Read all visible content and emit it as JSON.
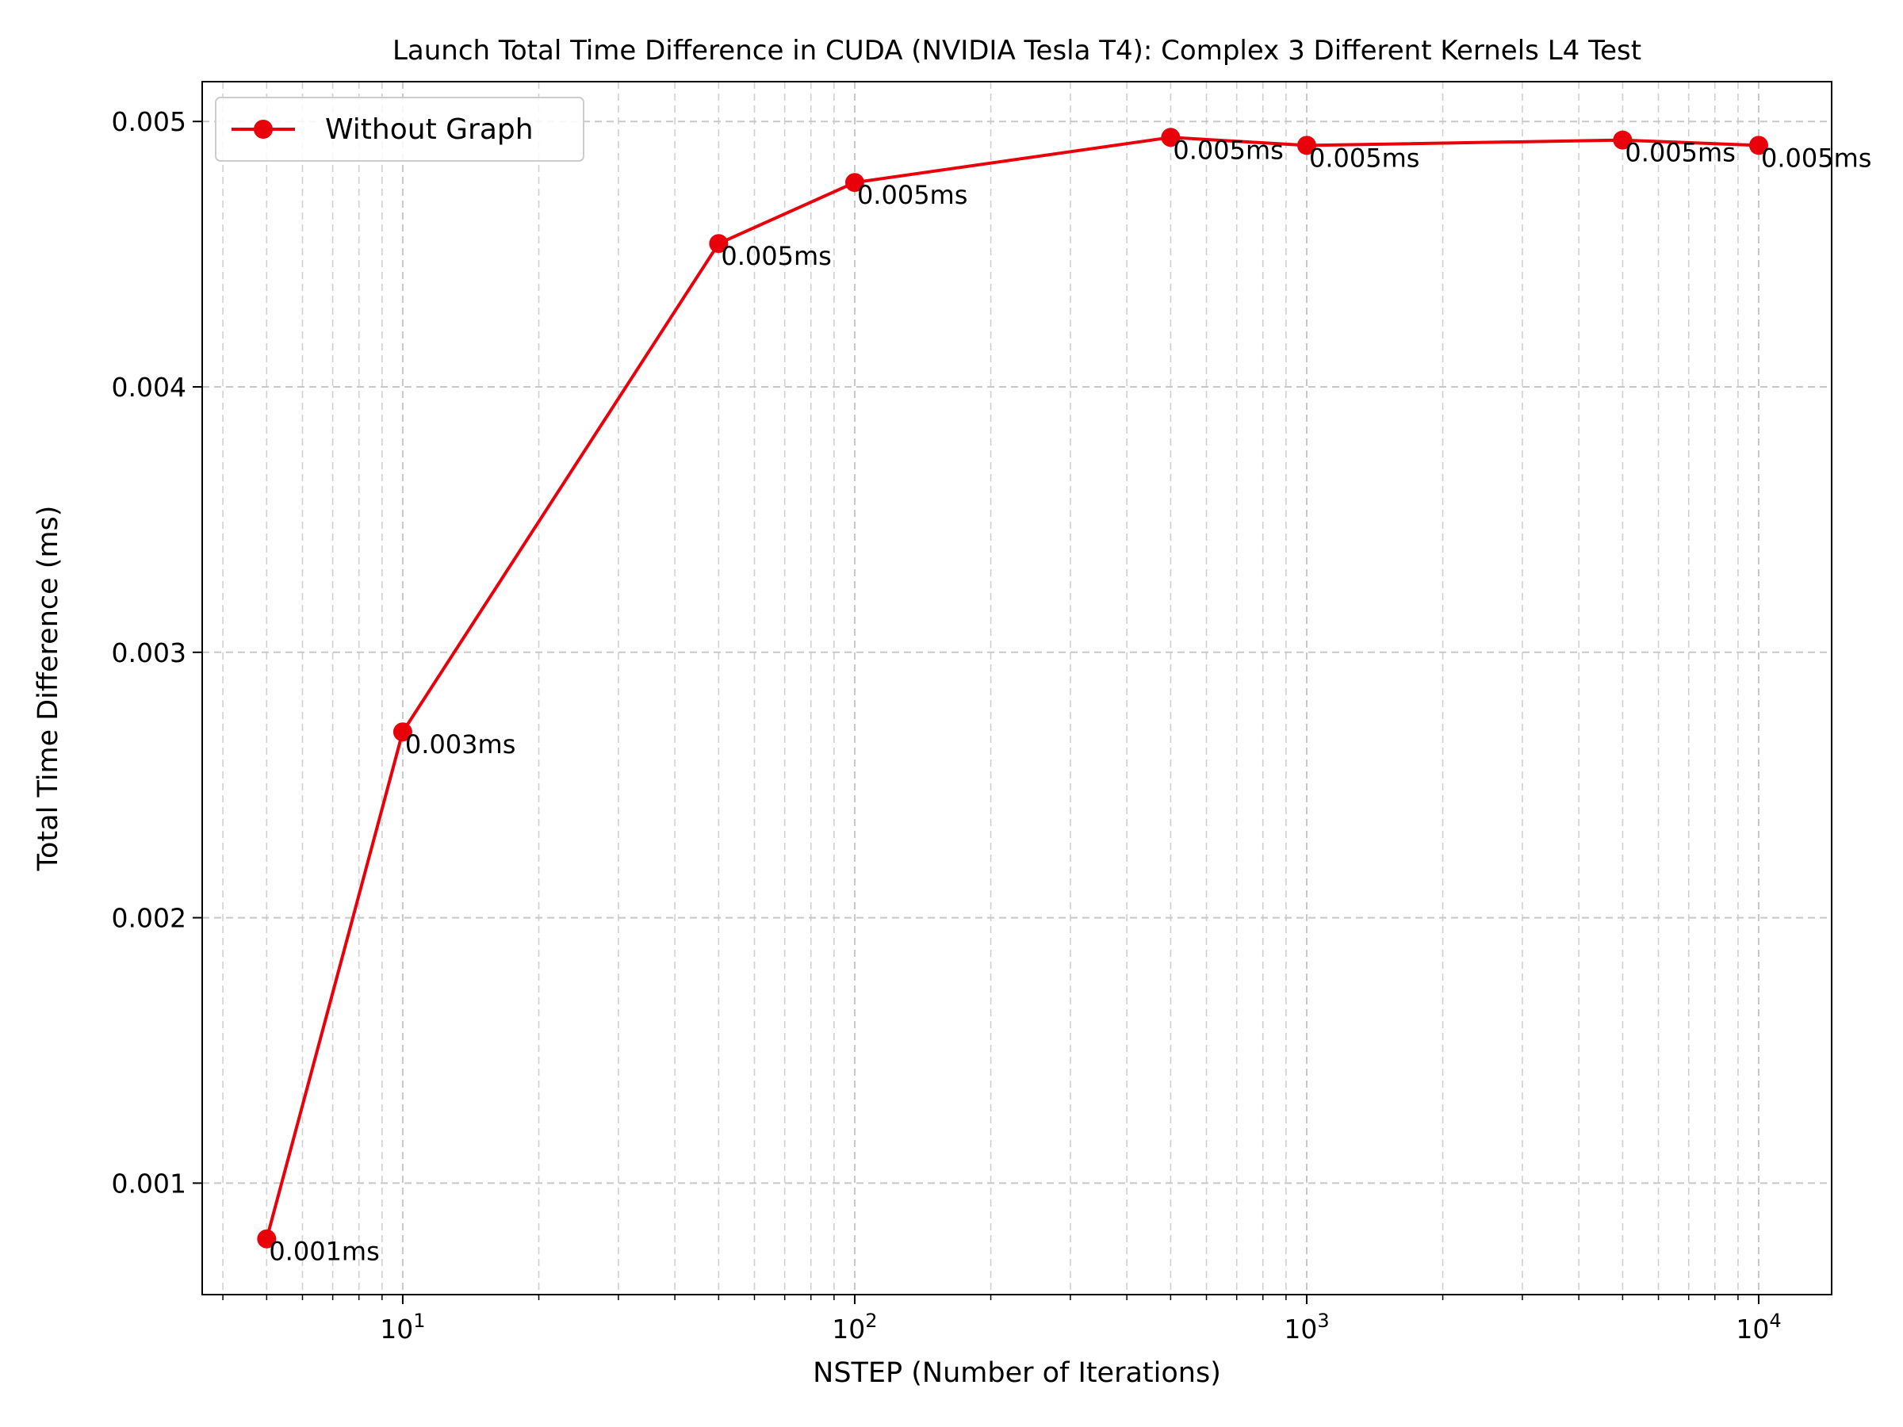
{
  "chart_data": {
    "type": "line",
    "title": "Launch Total Time Difference in CUDA (NVIDIA Tesla T4): Complex 3 Different Kernels L4 Test",
    "xlabel": "NSTEP (Number of Iterations)",
    "ylabel": "Total Time Difference (ms)",
    "xscale": "log",
    "xlim": [
      3.6,
      14500
    ],
    "ylim": [
      0.00058,
      0.00515
    ],
    "grid": true,
    "legend_position": "top-left",
    "x_ticks": [
      {
        "value": 10,
        "base": "10",
        "exp": "1"
      },
      {
        "value": 100,
        "base": "10",
        "exp": "2"
      },
      {
        "value": 1000,
        "base": "10",
        "exp": "3"
      },
      {
        "value": 10000,
        "base": "10",
        "exp": "4"
      }
    ],
    "y_ticks": [
      {
        "value": 0.001,
        "label": "0.001"
      },
      {
        "value": 0.002,
        "label": "0.002"
      },
      {
        "value": 0.003,
        "label": "0.003"
      },
      {
        "value": 0.004,
        "label": "0.004"
      },
      {
        "value": 0.005,
        "label": "0.005"
      }
    ],
    "series": [
      {
        "name": "Without Graph",
        "color": "#e8000b",
        "x": [
          5,
          10,
          50,
          100,
          500,
          1000,
          5000,
          10000
        ],
        "y": [
          0.00079,
          0.0027,
          0.00454,
          0.00477,
          0.00494,
          0.00491,
          0.00493,
          0.00491
        ],
        "labels": [
          "0.001ms",
          "0.003ms",
          "0.005ms",
          "0.005ms",
          "0.005ms",
          "0.005ms",
          "0.005ms",
          "0.005ms"
        ]
      }
    ]
  }
}
